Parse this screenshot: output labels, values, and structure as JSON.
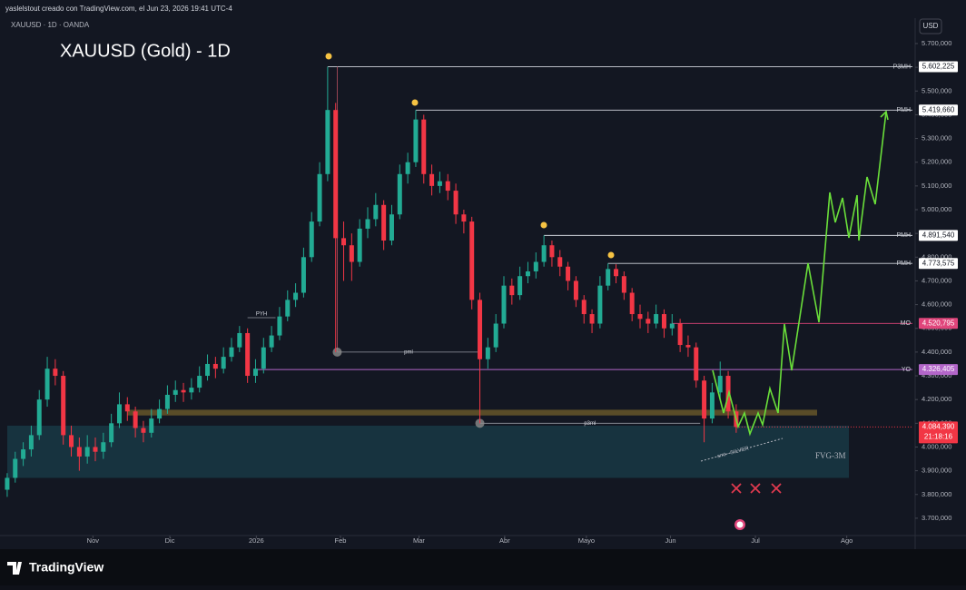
{
  "header": {
    "caption": "yaslelstout creado con TradingView.com, el Jun 23, 2026 19:41 UTC-4",
    "symbol": "XAUUSD · 1D · OANDA",
    "currency": "USD",
    "brand": "TradingView"
  },
  "chart_data": {
    "type": "candlestick",
    "title": "XAUUSD (Gold) - 1D",
    "xlim": [
      -0.9,
      113
    ],
    "xticks": [
      {
        "value": 10.7,
        "label": "Nov"
      },
      {
        "value": 20.3,
        "label": "Dic"
      },
      {
        "value": 31.1,
        "label": "2026"
      },
      {
        "value": 41.6,
        "label": "Feb"
      },
      {
        "value": 51.4,
        "label": "Mar"
      },
      {
        "value": 62.1,
        "label": "Abr"
      },
      {
        "value": 72.3,
        "label": "Mayo"
      },
      {
        "value": 82.8,
        "label": "Jun"
      },
      {
        "value": 93.4,
        "label": "Jul"
      },
      {
        "value": 104.8,
        "label": "Ago"
      }
    ],
    "ylim": [
      3627,
      5807
    ],
    "yticks": [
      {
        "value": 3700,
        "label": "3.700,000"
      },
      {
        "value": 3800,
        "label": "3.800,000"
      },
      {
        "value": 3900,
        "label": "3.900,000"
      },
      {
        "value": 4000,
        "label": "4.000,000"
      },
      {
        "value": 4100,
        "label": "4.100,000"
      },
      {
        "value": 4200,
        "label": "4.200,000"
      },
      {
        "value": 4300,
        "label": "4.300,000"
      },
      {
        "value": 4400,
        "label": "4.400,000"
      },
      {
        "value": 4500,
        "label": "4.500,000"
      },
      {
        "value": 4600,
        "label": "4.600,000"
      },
      {
        "value": 4700,
        "label": "4.700,000"
      },
      {
        "value": 4800,
        "label": "4.800,000"
      },
      {
        "value": 4900,
        "label": "4.900,000"
      },
      {
        "value": 5000,
        "label": "5.000,000"
      },
      {
        "value": 5100,
        "label": "5.100,000"
      },
      {
        "value": 5200,
        "label": "5.200,000"
      },
      {
        "value": 5300,
        "label": "5.300,000"
      },
      {
        "value": 5400,
        "label": "5.400,000"
      },
      {
        "value": 5500,
        "label": "5.500,000"
      },
      {
        "value": 5600,
        "label": "5.600,000"
      },
      {
        "value": 5700,
        "label": "5.700,000"
      }
    ],
    "up_color": "#22ab94",
    "down_color": "#f23645",
    "series": [
      {
        "name": "XAUUSD",
        "ohlc": [
          [
            3820,
            3890,
            3790,
            3870
          ],
          [
            3870,
            3980,
            3850,
            3950
          ],
          [
            3950,
            4020,
            3920,
            3990
          ],
          [
            3990,
            4090,
            3960,
            4050
          ],
          [
            4050,
            4240,
            4030,
            4200
          ],
          [
            4200,
            4380,
            4170,
            4330
          ],
          [
            4330,
            4370,
            4260,
            4300
          ],
          [
            4300,
            4320,
            4010,
            4050
          ],
          [
            4050,
            4090,
            3960,
            4000
          ],
          [
            4000,
            4040,
            3900,
            3960
          ],
          [
            3960,
            4050,
            3930,
            4000
          ],
          [
            4000,
            4040,
            3940,
            3980
          ],
          [
            3980,
            4060,
            3950,
            4020
          ],
          [
            4020,
            4140,
            4000,
            4100
          ],
          [
            4100,
            4230,
            4080,
            4180
          ],
          [
            4180,
            4210,
            4110,
            4150
          ],
          [
            4150,
            4170,
            4040,
            4080
          ],
          [
            4080,
            4110,
            4020,
            4060
          ],
          [
            4060,
            4160,
            4040,
            4120
          ],
          [
            4120,
            4200,
            4100,
            4160
          ],
          [
            4160,
            4260,
            4140,
            4220
          ],
          [
            4220,
            4280,
            4190,
            4240
          ],
          [
            4240,
            4270,
            4190,
            4230
          ],
          [
            4230,
            4290,
            4200,
            4250
          ],
          [
            4250,
            4340,
            4230,
            4300
          ],
          [
            4300,
            4390,
            4280,
            4350
          ],
          [
            4350,
            4380,
            4290,
            4330
          ],
          [
            4330,
            4420,
            4310,
            4380
          ],
          [
            4380,
            4460,
            4360,
            4420
          ],
          [
            4420,
            4510,
            4400,
            4480
          ],
          [
            4480,
            4500,
            4270,
            4300
          ],
          [
            4300,
            4370,
            4270,
            4330
          ],
          [
            4330,
            4460,
            4310,
            4420
          ],
          [
            4420,
            4510,
            4400,
            4470
          ],
          [
            4470,
            4590,
            4450,
            4550
          ],
          [
            4550,
            4660,
            4530,
            4620
          ],
          [
            4620,
            4690,
            4590,
            4650
          ],
          [
            4650,
            4840,
            4630,
            4800
          ],
          [
            4800,
            4990,
            4780,
            4950
          ],
          [
            4950,
            5200,
            4930,
            5150
          ],
          [
            5150,
            5602.225,
            5120,
            5420
          ],
          [
            5420,
            5450,
            4400,
            4880
          ],
          [
            4880,
            4950,
            4700,
            4850
          ],
          [
            4850,
            4900,
            4700,
            4780
          ],
          [
            4780,
            4960,
            4760,
            4920
          ],
          [
            4920,
            5010,
            4880,
            4960
          ],
          [
            4960,
            5070,
            4930,
            5020
          ],
          [
            5020,
            5040,
            4830,
            4870
          ],
          [
            4870,
            5020,
            4850,
            4980
          ],
          [
            4980,
            5190,
            4960,
            5150
          ],
          [
            5150,
            5240,
            5110,
            5200
          ],
          [
            5200,
            5419.66,
            5180,
            5380
          ],
          [
            5380,
            5400,
            5110,
            5150
          ],
          [
            5150,
            5190,
            5060,
            5100
          ],
          [
            5100,
            5160,
            5070,
            5120
          ],
          [
            5120,
            5150,
            5040,
            5080
          ],
          [
            5080,
            5110,
            4940,
            4980
          ],
          [
            4980,
            5000,
            4900,
            4950
          ],
          [
            4950,
            4970,
            4580,
            4620
          ],
          [
            4620,
            4650,
            4100,
            4370
          ],
          [
            4370,
            4460,
            4330,
            4420
          ],
          [
            4420,
            4560,
            4400,
            4520
          ],
          [
            4520,
            4720,
            4500,
            4680
          ],
          [
            4680,
            4710,
            4600,
            4640
          ],
          [
            4640,
            4760,
            4620,
            4720
          ],
          [
            4720,
            4780,
            4690,
            4740
          ],
          [
            4740,
            4820,
            4710,
            4780
          ],
          [
            4780,
            4891.54,
            4760,
            4850
          ],
          [
            4850,
            4870,
            4760,
            4800
          ],
          [
            4800,
            4830,
            4720,
            4760
          ],
          [
            4760,
            4780,
            4660,
            4700
          ],
          [
            4700,
            4720,
            4590,
            4620
          ],
          [
            4620,
            4640,
            4520,
            4560
          ],
          [
            4560,
            4580,
            4480,
            4520
          ],
          [
            4520,
            4720,
            4500,
            4680
          ],
          [
            4680,
            4773.575,
            4660,
            4750
          ],
          [
            4750,
            4770,
            4690,
            4720
          ],
          [
            4720,
            4740,
            4620,
            4650
          ],
          [
            4650,
            4670,
            4530,
            4560
          ],
          [
            4560,
            4600,
            4500,
            4540
          ],
          [
            4540,
            4570,
            4480,
            4520
          ],
          [
            4520,
            4600,
            4500,
            4560
          ],
          [
            4560,
            4580,
            4460,
            4500
          ],
          [
            4500,
            4560,
            4470,
            4520
          ],
          [
            4520,
            4540,
            4400,
            4430
          ],
          [
            4430,
            4470,
            4380,
            4420
          ],
          [
            4420,
            4440,
            4250,
            4280
          ],
          [
            4280,
            4300,
            4020,
            4120
          ],
          [
            4120,
            4270,
            4100,
            4230
          ],
          [
            4230,
            4360,
            4200,
            4300
          ],
          [
            4300,
            4320,
            4120,
            4150
          ],
          [
            4150,
            4180,
            4060,
            4084.39
          ]
        ]
      }
    ],
    "last_price": {
      "value": 4084.39,
      "label": "4.084,390",
      "countdown": "21:18:16",
      "color": "#f23645"
    },
    "levels": [
      {
        "label": "P3MH",
        "value": 5602.225,
        "value_label": "5.602,225",
        "color": "#d1d4dc"
      },
      {
        "label": "PMH",
        "value": 5419.66,
        "value_label": "5.419,660",
        "color": "#d1d4dc"
      },
      {
        "label": "PMH",
        "value": 4891.54,
        "value_label": "4.891,540",
        "color": "#d1d4dc"
      },
      {
        "label": "PMH",
        "value": 4773.575,
        "value_label": "4.773,575",
        "color": "#d1d4dc"
      },
      {
        "label": "MO",
        "value": 4520.795,
        "value_label": "4.520,795",
        "color": "#e0457b"
      },
      {
        "label": "YO",
        "value": 4326.405,
        "value_label": "4.326,405",
        "color": "#b366c9"
      }
    ],
    "annotations": [
      {
        "text": "PYH",
        "value": 4545
      },
      {
        "text": "pml",
        "value": 4400
      },
      {
        "text": "p3ml",
        "value": 4100
      }
    ],
    "zones": [
      {
        "label": "FVG-3M",
        "top": 4090,
        "bottom": 3870,
        "color": "#1b4a57"
      },
      {
        "top": 4157,
        "bottom": 4133,
        "color": "#6b5a2a"
      }
    ],
    "smt_label": "smt - SILVER"
  }
}
